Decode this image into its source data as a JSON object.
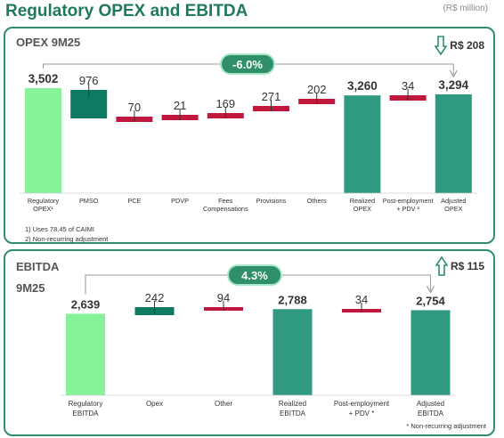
{
  "header": {
    "title": "Regulatory OPEX and EBITDA",
    "units": "(R$ million)"
  },
  "colors": {
    "green_light": "#86f29a",
    "teal_dark": "#0e7a62",
    "teal_mid": "#2f9a80",
    "red": "#c0173d",
    "border": "#2f8f6b"
  },
  "chart_data": [
    {
      "type": "bar",
      "subtype": "waterfall",
      "panel_title": "OPEX 9M25",
      "change_label": "-6.0%",
      "delta_label": "R$ 208",
      "delta_icon": "down-arrow-icon",
      "categories": [
        "Regulatory OPEX¹",
        "PMSO",
        "PCE",
        "PDVP",
        "Fees Compensations",
        "Provisions",
        "Others",
        "Realized OPEX",
        "Post-employment + PDV ²",
        "Adjusted OPEX"
      ],
      "values": [
        3502,
        -976,
        70,
        21,
        169,
        271,
        202,
        3260,
        34,
        3294
      ],
      "bar_kinds": [
        "total",
        "decrease",
        "increase",
        "increase",
        "increase",
        "increase",
        "increase",
        "total",
        "increase",
        "total"
      ],
      "value_labels": [
        "3,502",
        "976",
        "70",
        "21",
        "169",
        "271",
        "202",
        "3,260",
        "34",
        "3,294"
      ],
      "footnotes": [
        "1) Uses 78,45 of CAIMI",
        "2) Non-recurring adjustment"
      ]
    },
    {
      "type": "bar",
      "subtype": "waterfall",
      "panel_title": "EBITDA",
      "panel_subtitle": "9M25",
      "change_label": "4.3%",
      "delta_label": "R$ 115",
      "delta_icon": "up-arrow-icon",
      "categories": [
        "Regulatory EBITDA",
        "Opex",
        "Other",
        "Realized EBITDA",
        "Post-employment + PDV *",
        "Adjusted EBITDA"
      ],
      "values": [
        2639,
        242,
        -94,
        2788,
        -34,
        2754
      ],
      "bar_kinds": [
        "total",
        "increase",
        "decrease",
        "total",
        "decrease",
        "total"
      ],
      "value_labels": [
        "2,639",
        "242",
        "94",
        "2,788",
        "34",
        "2,754"
      ],
      "footnotes": [
        "* Non-recurring adjustment"
      ]
    }
  ]
}
